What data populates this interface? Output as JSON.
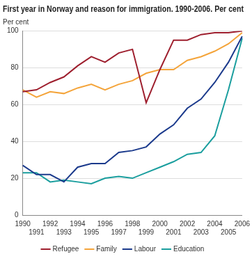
{
  "chart_data": {
    "type": "line",
    "title": "First year in Norway and reason for immigration. 1990-2006. Per cent",
    "y_label": "Per cent",
    "categories": [
      "1990",
      "1991",
      "1992",
      "1993",
      "1994",
      "1995",
      "1996",
      "1997",
      "1998",
      "1999",
      "2000",
      "2001",
      "2002",
      "2003",
      "2004",
      "2005",
      "2006"
    ],
    "series": [
      {
        "name": "Refugee",
        "color": "#9e1f2e",
        "values": [
          67,
          68,
          72,
          75,
          81,
          86,
          83,
          88,
          90,
          61,
          79,
          95,
          95,
          98,
          99,
          99,
          100
        ]
      },
      {
        "name": "Family",
        "color": "#f4a43a",
        "values": [
          68,
          64,
          67,
          66,
          69,
          71,
          68,
          71,
          73,
          77,
          79,
          79,
          84,
          86,
          89,
          93,
          99
        ]
      },
      {
        "name": "Labour",
        "color": "#1b3a8c",
        "values": [
          27,
          22,
          22,
          18,
          26,
          28,
          28,
          34,
          35,
          37,
          44,
          49,
          58,
          63,
          72,
          83,
          97
        ]
      },
      {
        "name": "Education",
        "color": "#1a9e9e",
        "values": [
          23,
          23,
          18,
          19,
          18,
          17,
          20,
          21,
          20,
          23,
          26,
          29,
          33,
          34,
          43,
          68,
          96
        ]
      }
    ],
    "ylim": [
      0,
      100
    ],
    "yticks": [
      0,
      20,
      40,
      60,
      80,
      100
    ],
    "grid": true,
    "legend": "bottom"
  }
}
